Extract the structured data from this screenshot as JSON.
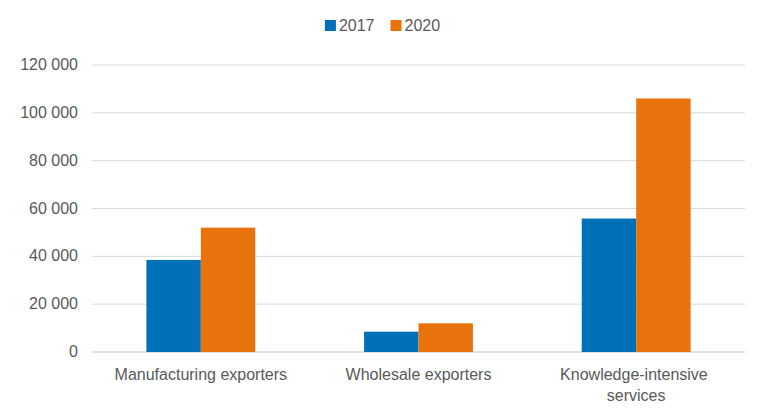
{
  "chart_data": {
    "type": "bar",
    "categories": [
      "Manufacturing exporters",
      "Wholesale exporters",
      "Knowledge-intensive services"
    ],
    "series": [
      {
        "name": "2017",
        "color": "#0070b8",
        "values": [
          38500,
          8500,
          55800
        ]
      },
      {
        "name": "2020",
        "color": "#e8730c",
        "values": [
          52000,
          12000,
          106000
        ]
      }
    ],
    "ylim": [
      0,
      120000
    ],
    "yticks": [
      0,
      {
        "value": 20000,
        "label": "20 000"
      },
      {
        "value": 40000,
        "label": "40 000"
      },
      {
        "value": 60000,
        "label": "60 000"
      },
      {
        "value": 80000,
        "label": "80 000"
      },
      {
        "value": 100000,
        "label": "100 000"
      },
      {
        "value": 120000,
        "label": "120 000"
      }
    ],
    "grid": true,
    "legend": "top"
  }
}
